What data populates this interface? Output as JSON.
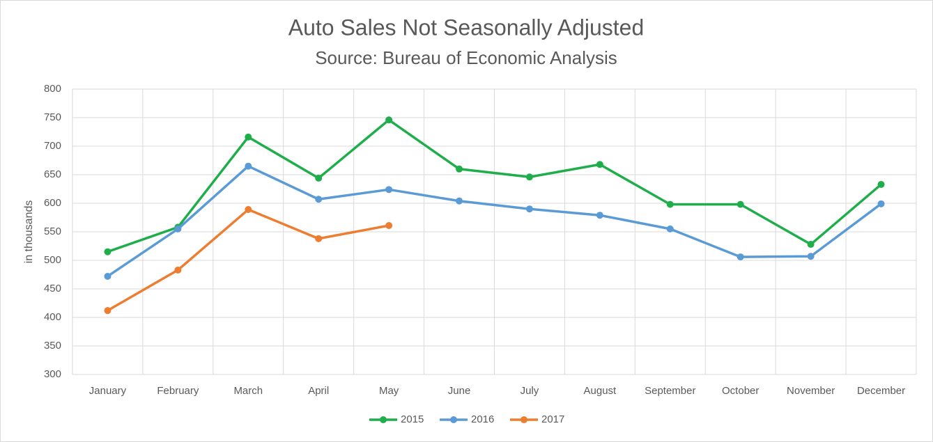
{
  "chart_data": {
    "type": "line",
    "title": "Auto Sales Not Seasonally Adjusted",
    "subtitle": "Source: Bureau of Economic Analysis",
    "y_label": "in thousands",
    "categories": [
      "January",
      "February",
      "March",
      "April",
      "May",
      "June",
      "July",
      "August",
      "September",
      "October",
      "November",
      "December"
    ],
    "series": [
      {
        "name": "2015",
        "color": "#1fae4b",
        "values": [
          515,
          558,
          716,
          644,
          746,
          660,
          646,
          668,
          598,
          598,
          528,
          633
        ]
      },
      {
        "name": "2016",
        "color": "#5b9bd5",
        "values": [
          472,
          555,
          665,
          607,
          624,
          604,
          590,
          579,
          555,
          506,
          507,
          599
        ]
      },
      {
        "name": "2017",
        "color": "#ed7d31",
        "values": [
          412,
          483,
          589,
          538,
          561,
          null,
          null,
          null,
          null,
          null,
          null,
          null
        ]
      }
    ],
    "ylim": [
      300,
      800
    ],
    "yticks": [
      300,
      350,
      400,
      450,
      500,
      550,
      600,
      650,
      700,
      750,
      800
    ],
    "grid": true,
    "legend": "bottom"
  }
}
